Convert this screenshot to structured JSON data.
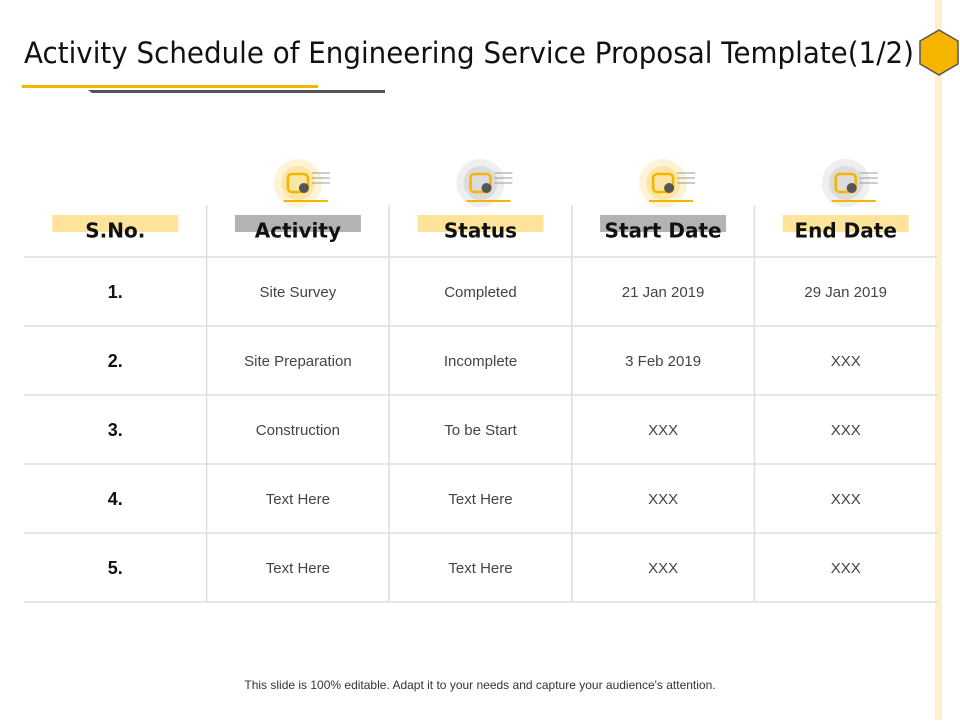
{
  "header": {
    "title": "Activity Schedule of Engineering Service Proposal Template(1/2)"
  },
  "table": {
    "columns": [
      "S.No.",
      "Activity",
      "Status",
      "Start Date",
      "End Date"
    ],
    "rows": [
      [
        "1.",
        "Site Survey",
        "Completed",
        "21 Jan 2019",
        "29 Jan 2019"
      ],
      [
        "2.",
        "Site Preparation",
        "Incomplete",
        "3 Feb 2019",
        "XXX"
      ],
      [
        "3.",
        "Construction",
        "To be Start",
        "XXX",
        "XXX"
      ],
      [
        "4.",
        "Text Here",
        "Text Here",
        "XXX",
        "XXX"
      ],
      [
        "5.",
        "Text Here",
        "Text Here",
        "XXX",
        "XXX"
      ]
    ]
  },
  "footer": {
    "note": "This slide is 100% editable. Adapt it to your needs and capture your audience's attention."
  }
}
